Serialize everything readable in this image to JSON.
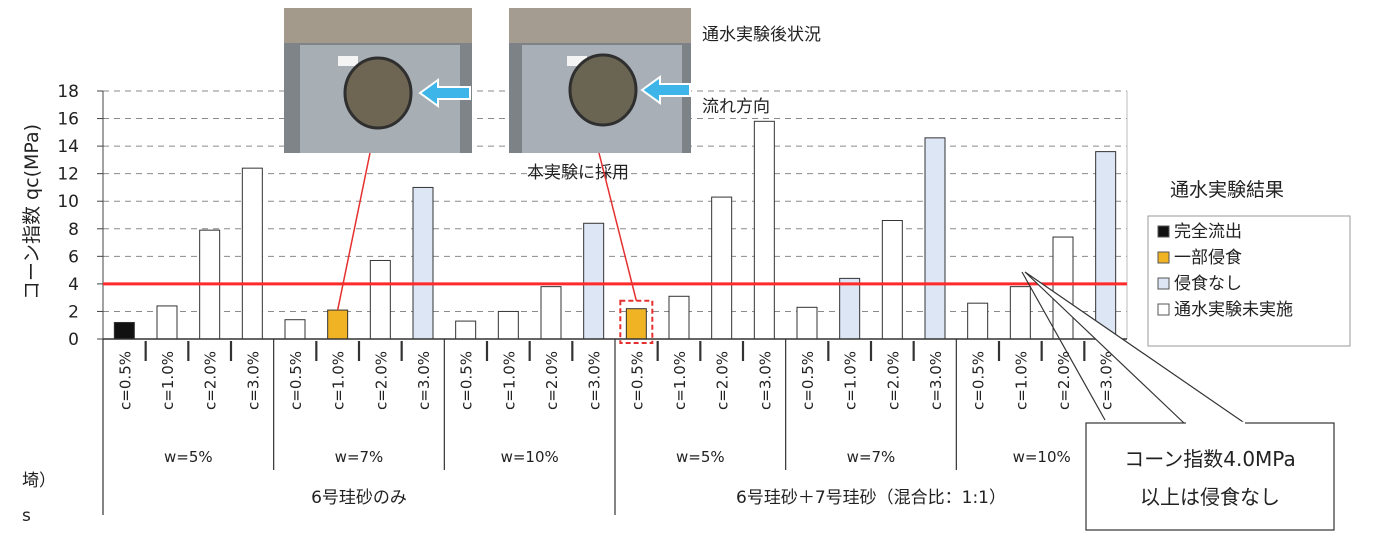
{
  "chart_data": {
    "type": "bar",
    "ylabel": "コーン指数 qc(MPa)",
    "ylim": [
      0,
      18
    ],
    "yticks": [
      0,
      2,
      4,
      6,
      8,
      10,
      12,
      14,
      16,
      18
    ],
    "grid": "horizontal dashed",
    "threshold": 4.0,
    "threshold_color": "#ff2a2a",
    "categories": [
      "c=0.5%",
      "c=1.0%",
      "c=2.0%",
      "c=3.0%",
      "c=0.5%",
      "c=1.0%",
      "c=2.0%",
      "c=3.0%",
      "c=0.5%",
      "c=1.0%",
      "c=2.0%",
      "c=3.0%",
      "c=0.5%",
      "c=1.0%",
      "c=2.0%",
      "c=3.0%",
      "c=0.5%",
      "c=1.0%",
      "c=2.0%",
      "c=3.0%",
      "c=0.5%",
      "c=1.0%",
      "c=2.0%",
      "c=3.0%"
    ],
    "values": [
      1.2,
      2.4,
      7.9,
      12.4,
      1.4,
      2.1,
      5.7,
      11.0,
      1.3,
      2.0,
      3.8,
      8.4,
      2.2,
      3.1,
      10.3,
      15.8,
      2.3,
      4.4,
      8.6,
      14.6,
      2.6,
      3.8,
      7.4,
      13.6
    ],
    "status": [
      "full",
      "none_test",
      "none_test",
      "none_test",
      "none_test",
      "partial",
      "none_test",
      "no_erosion",
      "none_test",
      "none_test",
      "none_test",
      "no_erosion",
      "partial",
      "none_test",
      "none_test",
      "none_test",
      "none_test",
      "no_erosion",
      "none_test",
      "no_erosion",
      "none_test",
      "none_test",
      "none_test",
      "no_erosion"
    ],
    "status_colors": {
      "full": "#111111",
      "partial": "#f0b323",
      "no_erosion": "#dce6f4",
      "none_test": "#ffffff"
    },
    "w_groups": [
      "w=5%",
      "w=7%",
      "w=10%",
      "w=5%",
      "w=7%",
      "w=10%"
    ],
    "sand_groups": [
      "6号珪砂のみ",
      "6号珪砂＋7号珪砂（混合比：1:1）"
    ],
    "legend": {
      "title": "通水実験結果",
      "items": [
        {
          "status": "full",
          "label": "完全流出"
        },
        {
          "status": "partial",
          "label": "一部侵食"
        },
        {
          "status": "no_erosion",
          "label": "侵食なし"
        },
        {
          "status": "none_test",
          "label": "通水実験未実施"
        }
      ]
    }
  },
  "photo_caption": "通水実験後状況",
  "flow_label": "流れ方向",
  "flow_color": "#2aa8e0",
  "adopted_label": "本実験に採用",
  "adopted_color": "#e53030",
  "callout_lines": [
    "コーン指数4.0MPa",
    "以上は侵食なし"
  ],
  "edge_text": [
    "埼）",
    "s"
  ]
}
